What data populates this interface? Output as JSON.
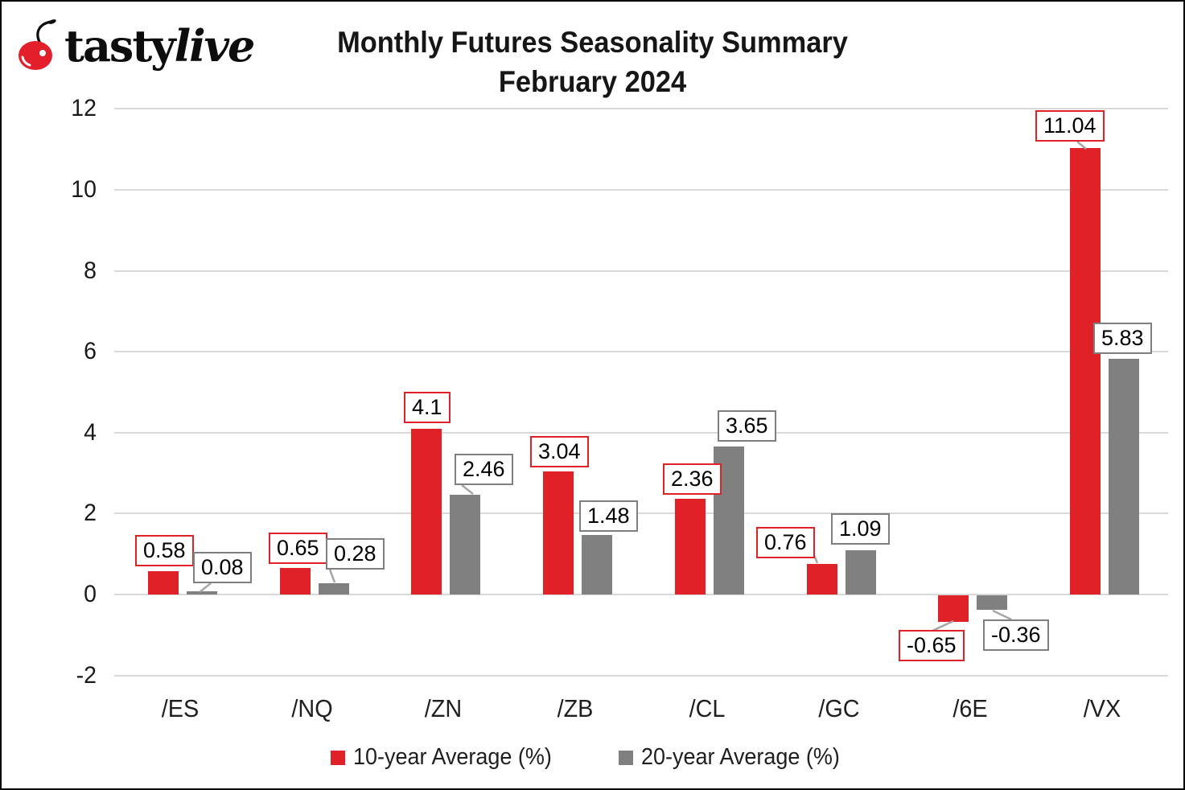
{
  "brand": {
    "name_regular": "tasty",
    "name_italic": "live",
    "cherry_color": "#e31f2b"
  },
  "title": {
    "line1": "Monthly Futures Seasonality Summary",
    "line2": "February 2024"
  },
  "chart_data": {
    "type": "bar",
    "title": "Monthly Futures Seasonality Summary",
    "subtitle": "February 2024",
    "categories": [
      "/ES",
      "/NQ",
      "/ZN",
      "/ZB",
      "/CL",
      "/GC",
      "/6E",
      "/VX"
    ],
    "series": [
      {
        "name": "10-year Average (%)",
        "color": "#e02127",
        "values": [
          0.58,
          0.65,
          4.1,
          3.04,
          2.36,
          0.76,
          -0.65,
          11.04
        ]
      },
      {
        "name": "20-year Average (%)",
        "color": "#808080",
        "values": [
          0.08,
          0.28,
          2.46,
          1.48,
          3.65,
          1.09,
          -0.36,
          5.83
        ]
      }
    ],
    "ylim": [
      -2,
      12
    ],
    "y_ticks": [
      -2,
      0,
      2,
      4,
      6,
      8,
      10,
      12
    ],
    "grid": true,
    "legend_position": "bottom",
    "colors": {
      "gridline": "#d9d9d9",
      "leader_line": "#a6a6a6",
      "label_box_background": "#ffffff"
    }
  }
}
